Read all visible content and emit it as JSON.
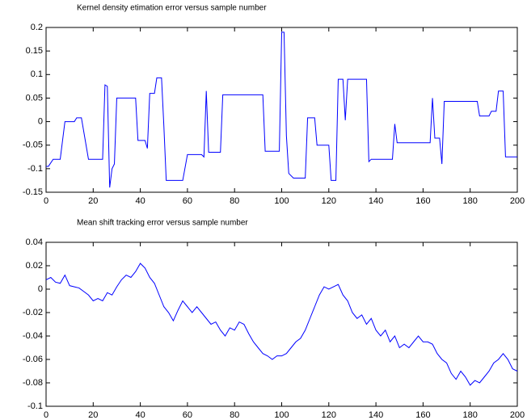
{
  "chart_data": [
    {
      "type": "line",
      "title": "Kernel density etimation error versus sample number",
      "color": "#0000ff",
      "x": [
        0,
        1,
        3,
        6,
        8,
        12,
        13,
        15,
        18,
        24,
        25,
        26,
        27,
        28,
        29,
        30,
        38,
        39,
        42,
        43,
        44,
        46,
        47,
        49,
        50,
        51,
        58,
        60,
        66,
        67,
        68,
        69,
        74,
        75,
        92,
        93,
        99,
        100,
        101,
        102,
        103,
        105,
        110,
        111,
        114,
        115,
        120,
        121,
        123,
        124,
        126,
        127,
        128,
        136,
        137,
        138,
        147,
        148,
        149,
        163,
        164,
        165,
        167,
        168,
        169,
        183,
        184,
        188,
        189,
        191,
        192,
        194,
        195,
        200
      ],
      "values": [
        -0.095,
        -0.095,
        -0.08,
        -0.08,
        0,
        0,
        0.008,
        0.008,
        -0.08,
        -0.08,
        0.078,
        0.075,
        -0.14,
        -0.1,
        -0.09,
        0.05,
        0.05,
        -0.04,
        -0.04,
        -0.057,
        0.06,
        0.06,
        0.093,
        0.093,
        -0.01,
        -0.125,
        -0.125,
        -0.07,
        -0.07,
        -0.075,
        0.065,
        -0.065,
        -0.065,
        0.057,
        0.057,
        -0.063,
        -0.063,
        0.19,
        0.19,
        -0.03,
        -0.11,
        -0.12,
        -0.12,
        0.008,
        0.008,
        -0.05,
        -0.05,
        -0.125,
        -0.125,
        0.09,
        0.09,
        0.003,
        0.09,
        0.09,
        -0.085,
        -0.08,
        -0.08,
        -0.005,
        -0.045,
        -0.045,
        0.05,
        -0.035,
        -0.035,
        -0.09,
        0.043,
        0.043,
        0.012,
        0.012,
        0.022,
        0.022,
        0.065,
        0.065,
        -0.075,
        -0.075
      ],
      "xlim": [
        0,
        200
      ],
      "xticks": [
        0,
        20,
        40,
        60,
        80,
        100,
        120,
        140,
        160,
        180,
        200
      ],
      "ylim": [
        -0.15,
        0.2
      ],
      "yticks": [
        -0.15,
        -0.1,
        -0.05,
        0,
        0.05,
        0.1,
        0.15,
        0.2
      ],
      "grid": false
    },
    {
      "type": "line",
      "title": "Mean shift tracking error versus sample number",
      "color": "#0000ff",
      "x": [
        0,
        2,
        4,
        6,
        8,
        10,
        12,
        14,
        16,
        18,
        20,
        22,
        24,
        26,
        28,
        30,
        32,
        34,
        36,
        38,
        40,
        42,
        44,
        46,
        48,
        50,
        52,
        54,
        56,
        58,
        60,
        62,
        64,
        66,
        68,
        70,
        72,
        74,
        76,
        78,
        80,
        82,
        84,
        86,
        88,
        90,
        92,
        94,
        96,
        98,
        100,
        102,
        104,
        106,
        108,
        110,
        112,
        114,
        116,
        118,
        120,
        122,
        124,
        126,
        128,
        130,
        132,
        134,
        136,
        138,
        140,
        142,
        144,
        146,
        148,
        150,
        152,
        154,
        156,
        158,
        160,
        162,
        164,
        166,
        168,
        170,
        172,
        174,
        176,
        178,
        180,
        182,
        184,
        186,
        188,
        190,
        192,
        194,
        196,
        198,
        200
      ],
      "values": [
        0.008,
        0.01,
        0.006,
        0.005,
        0.012,
        0.003,
        0.002,
        0.001,
        -0.002,
        -0.005,
        -0.01,
        -0.008,
        -0.01,
        -0.003,
        -0.005,
        0.002,
        0.008,
        0.012,
        0.01,
        0.015,
        0.022,
        0.018,
        0.01,
        0.005,
        -0.005,
        -0.015,
        -0.02,
        -0.027,
        -0.018,
        -0.01,
        -0.015,
        -0.02,
        -0.015,
        -0.02,
        -0.025,
        -0.03,
        -0.028,
        -0.035,
        -0.04,
        -0.033,
        -0.035,
        -0.028,
        -0.03,
        -0.038,
        -0.045,
        -0.05,
        -0.055,
        -0.057,
        -0.06,
        -0.057,
        -0.057,
        -0.055,
        -0.05,
        -0.045,
        -0.042,
        -0.035,
        -0.025,
        -0.015,
        -0.005,
        0.002,
        0,
        0.002,
        0.004,
        -0.005,
        -0.01,
        -0.02,
        -0.025,
        -0.022,
        -0.03,
        -0.025,
        -0.035,
        -0.04,
        -0.035,
        -0.045,
        -0.04,
        -0.05,
        -0.047,
        -0.05,
        -0.045,
        -0.04,
        -0.045,
        -0.045,
        -0.047,
        -0.055,
        -0.06,
        -0.063,
        -0.072,
        -0.077,
        -0.07,
        -0.075,
        -0.082,
        -0.078,
        -0.08,
        -0.075,
        -0.07,
        -0.063,
        -0.06,
        -0.055,
        -0.06,
        -0.068,
        -0.07
      ],
      "xlim": [
        0,
        200
      ],
      "xticks": [
        0,
        20,
        40,
        60,
        80,
        100,
        120,
        140,
        160,
        180,
        200
      ],
      "ylim": [
        -0.1,
        0.04
      ],
      "yticks": [
        -0.1,
        -0.08,
        -0.06,
        -0.04,
        -0.02,
        0,
        0.02,
        0.04
      ],
      "grid": false
    }
  ]
}
